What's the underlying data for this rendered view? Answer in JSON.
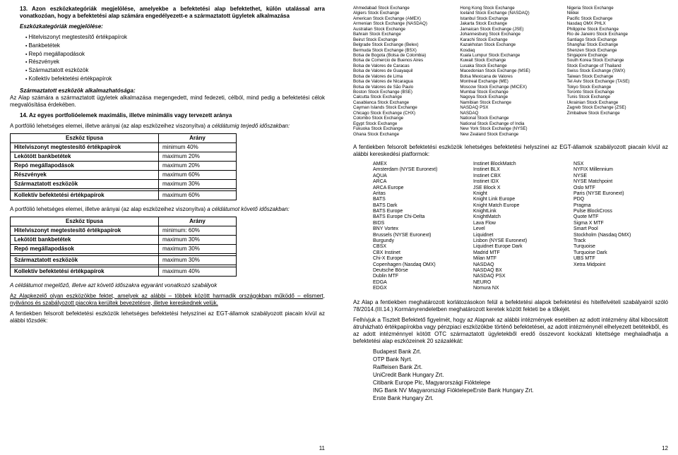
{
  "left": {
    "sec13_title": "13. Azon eszközkategóriák megjelölése, amelyekbe a befektetési alap befektethet, külön utalással arra vonatkozóan, hogy a befektetési alap számára engedélyezett-e a származtatott ügyletek alkalmazása",
    "cat_label": "Eszközkategóriák megjelölése:",
    "cats": [
      "Hitelviszonyt megtestesítő értékpapírok",
      "Bankbetétek",
      "Repó megállapodások",
      "Részvények",
      "Származtatott eszközök",
      "Kollektív befektetési értékpapírok"
    ],
    "deriv_title": "Származtatott eszközök alkalmazhatósága:",
    "deriv_body": "Az Alap számára a származtatott ügyletek alkalmazása megengedett, mind fedezeti, célból, mind pedig a befektetési célok megvalósítása érdekében.",
    "sec14_title": "14. Az egyes portfolióelemek maximális, illetve minimális vagy tervezett aránya",
    "intro1a": "A portfólió lehetséges elemei, illetve arányai (az alap eszközeihez viszonyítva) ",
    "intro1b": "a céldátumig terjedő időszakban:",
    "tbl1_h1": "Eszköz típusa",
    "tbl1_h2": "Arány",
    "tbl1": [
      [
        "Hitelviszonyt megtestesítő értékpapírok",
        "minimum 40%"
      ],
      [
        "Lekötött bankbetétek",
        "maximum 20%"
      ],
      [
        "Repó megállapodások",
        "maximum 20%"
      ],
      [
        "Részvények",
        "maximum 60%"
      ],
      [
        "Származtatott eszközök",
        "maximum 30%"
      ],
      [
        "Kollektív befektetési értékpapírok",
        "maximum 60%"
      ]
    ],
    "intro2a": "A portfólió lehetséges elemei, illetve arányai (az alap eszközeihez viszonyítva) ",
    "intro2b": "a céldátumot követő időszakban:",
    "tbl2": [
      [
        "Hitelviszonyt megtestesítő értékpapírok",
        "minimum: 60%"
      ],
      [
        "Lekötött bankbetétek",
        "maximum 30%"
      ],
      [
        "Repó megállapodások",
        "maximum 30%"
      ],
      [
        "Származtatott eszközök",
        "maximum 30%"
      ],
      [
        "Kollektív befektetési értékpapírok",
        "maximum 40%"
      ]
    ],
    "rules_title": "A céldátumot megelőző, illetve azt követő időszakra egyaránt vonatkozó szabályok",
    "rules_body": "Az Alapkezelő olyan eszközökbe fektet, amelyek az alábbi – többek között harmadik országokban működő – elismert, nyilvános és szabályozott piacokra kerültek bevezetésre, illetve kereskednek velük.",
    "closing": "A fentiekben felsorolt befektetési eszközök lehetséges befektetési helyszínei az EGT-államok szabályozott piacain kívül az alábbi tőzsdék:",
    "pagenum": "11"
  },
  "right": {
    "exch": {
      "c1": [
        "Ahmedabad Stock Exchange",
        "Algiers Stock Exchange",
        "American Stock Exchange (AMEX)",
        "Armenian Stock Exchange (NASDAQ)",
        "Australian Stock Exchange",
        "Bahrain Stock Exchange",
        "Beirut Stock Exchange",
        "Belgrade Stock Exchange (Belex)",
        "Bermuda Stock Exchange (BSX)",
        "Bolsa de Bogota (Bolsa de Colombia)",
        "Bolsa de Comercio de Buenos Aires",
        "Bolsa de Valores de Caracas",
        "Bolsa de Valores de Guayaquil",
        "Bolsa de Valores de Lima",
        "Bolsa de Valores de Nicaragua",
        "Bolsa de Valores de São Paulo",
        "Boston Stock Exchange (BSE)",
        "Calcutta Stock Exchange",
        "Casablanca Stock Exchange",
        "Cayman Islands Stock Exchange",
        "Chicago Stock Exchange (CHX)",
        "Colombo Stock Exchange",
        "Egypt Stock Exchange",
        "Fukuoka Stock Exchange",
        "Ghana Stock Exchange"
      ],
      "c2": [
        "Hong Kong Stock Exchange",
        "Iceland Stock Exchange (NASDAQ)",
        "Istanbul Stock Exchange",
        "Jakarta Stock Exchange",
        "Jamaican Stock Exchange (JSE)",
        "Johannesburg Stock Exchange",
        "Karachi Stock Exchange",
        "Kazakhstan Stock Exchange",
        "Kosdaq",
        "Kuala Lumpur Stock Exchange",
        "Kuwait Stock Exchange",
        "Lusaka Stock Exchange",
        "Macedonian Stock Exchange (MSE)",
        "Bolsa Mexicana de Valores",
        "Montreal Exchange (ME)",
        "Moscow Stock Exchange (MICEX)",
        "Mumbai Stock Exchange",
        "Nagoya Stock Exchange",
        "Namibian Stock Exchange",
        "NASDAQ PSX",
        "NASDAQ",
        "National Stock Exchange",
        "National Stock Exchange of India",
        "New York Stock Exchange (NYSE)",
        "New Zealand Stock Exchange"
      ],
      "c3": [
        "Nigeria Stock Exchange",
        "Nikkei",
        "Pacific Stock Exchange",
        "Nasdaq OMX PHLX",
        "Philippine Stock Exchange",
        "Rio de Janeiro Stock Exchange",
        "Santiago Stock Exchange",
        "Shanghai Stock Exchange",
        "Shenzen Stock Exchange",
        "Singapore Exchange",
        "South Korea Stock Exchange",
        "Stock Exchange of Thailand",
        "Swiss Stock Exchange (SWX)",
        "Taiwan Stock Exchange",
        "Tel Aviv Stock Exchange (TASE)",
        "Tokyo Stock Exchange",
        "Toronto Stock Exchange",
        "Tunis Stock Exchange",
        "Ukrainian Stock Exchange",
        "Zagreb Stock Exchange (ZSE)",
        "Zimbabwe Stock Exchange"
      ]
    },
    "plat_intro": "A fentiekben felsorolt befektetési eszközök lehetséges befektetési helyszínei az EGT-államok szabályozott piacain kívül az alábbi kereskedési platformok:",
    "plat": {
      "c1": [
        "AMEX",
        "Amsterdam (NYSE Euronext)",
        "AQUA",
        "ARCA",
        "ARCA Europe",
        "Aritas",
        "BATS",
        "BATS Dark",
        "BATS Europe",
        "BATS Europe Chi-Delta",
        "BIDS",
        "BNY Vortex",
        "Brussels (NYSE Euronext)",
        "Burgundy",
        "CBSX",
        "CBX Instinet",
        "Chi-X Europe",
        "Copenhagen (Nasdaq OMX)",
        "Deutsche Börse",
        "Dublin MTF",
        "EDGA",
        "EDGX"
      ],
      "c2": [
        "Instinet BlockMatch",
        "Instinet BLX",
        "Instinet CBX",
        "Instinet IDX",
        "JSE Block X",
        "Knight",
        "Knight Link Europe",
        "Knight Match Europe",
        "KnightLink",
        "KnightMatch",
        "Lava Flow",
        "Level",
        "Liquidnet",
        "Lisbon (NYSE Euronext)",
        "Liquidnet Europe Dark",
        "Madrid MTF",
        "Milan MTF",
        "NASDAQ",
        "NASDAQ BX",
        "NASDAQ PSX",
        "NEURO",
        "Nomura NX"
      ],
      "c3": [
        "NSX",
        "NYFIX Millennium",
        "NYSE",
        "NYSE Matchpoint",
        "Oslo MTF",
        "Paris (NYSE Euronext)",
        "PDQ",
        "Pragma",
        "Pulse BlockCross",
        "Quote MTF",
        "Sigma X MTF",
        "Smart Pool",
        "Stockholm (Nasdaq OMX)",
        "Track",
        "Turquoise",
        "Turquoise Dark",
        "UBS MTF",
        "Xetra Midpoint"
      ]
    },
    "restr": "Az Alap a fentiekben meghatározott korlátozásokon felül a befektetési alapok befektetési és hitelfelvételi szabályairól szóló 78/2014.(III.14.) Kormányrendeletben meghatározott keretek között fekteti be a tőkéjét.",
    "warn": "Felhívjuk a Tisztelt Befektető figyelmét, hogy az Alapnak az alábbi intézmények esetében az adott intézmény által kibocsátott átruházható értékpapírokba vagy pénzpiaci eszközökbe történő befektetései, az adott intézménynél elhelyezett betétekből, és az adott intézménnyel kötött OTC származtatott ügyletekből eredő összevont kockázati kitettsége meghaladhatja a befektetési alap eszközeinek 20 százalékát:",
    "banks": [
      "Budapest Bank Zrt.",
      "OTP Bank Nyrt.",
      "Raiffeisen Bank Zrt.",
      "UniCredit Bank Hungary Zrt.",
      "Citibank Europe Plc, Magyarországi Fióktelepe",
      "ING Bank NV Magyarországi FióktelepeErste Bank Hungary Zrt.",
      "Erste Bank Hungary Zrt."
    ],
    "pagenum": "12"
  }
}
